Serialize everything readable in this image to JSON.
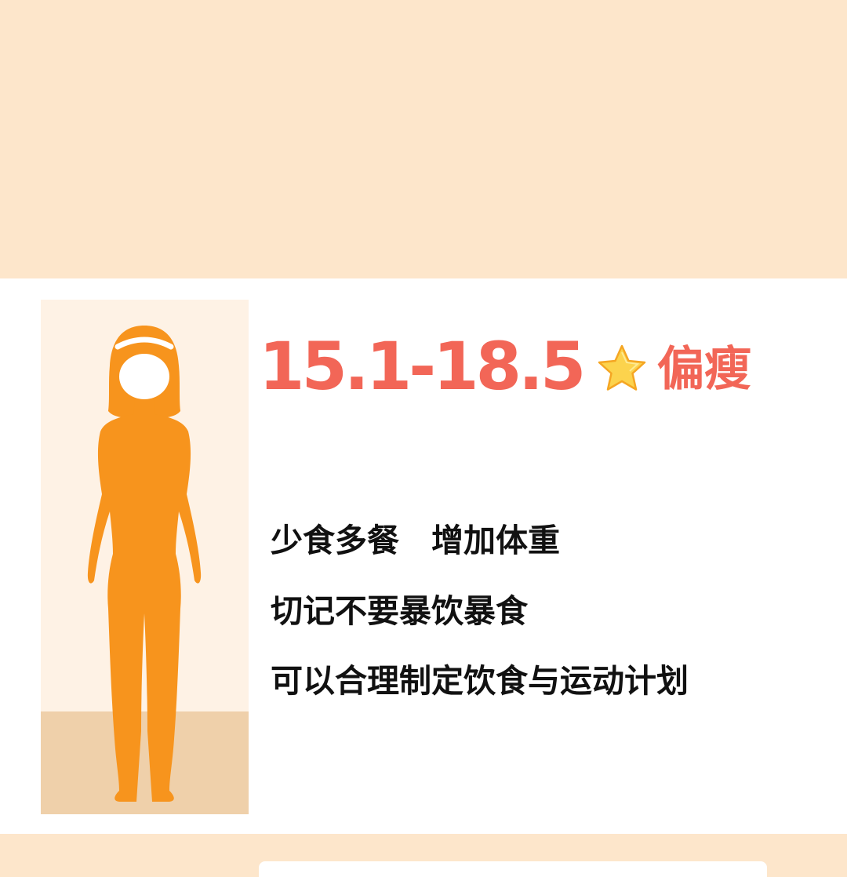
{
  "bmi_card": {
    "range": "15.1-18.5",
    "category_icon": "star-icon",
    "category": "偏瘦",
    "tips": [
      "少食多餐　增加体重",
      "切记不要暴饮暴食",
      "可以合理制定饮食与运动计划"
    ]
  },
  "colors": {
    "background": "#FDE6CB",
    "accent": "#F26657",
    "figure": "#F7941D",
    "figure_card_bg": "#FEF2E5",
    "figure_floor": "#EFD0AA"
  }
}
